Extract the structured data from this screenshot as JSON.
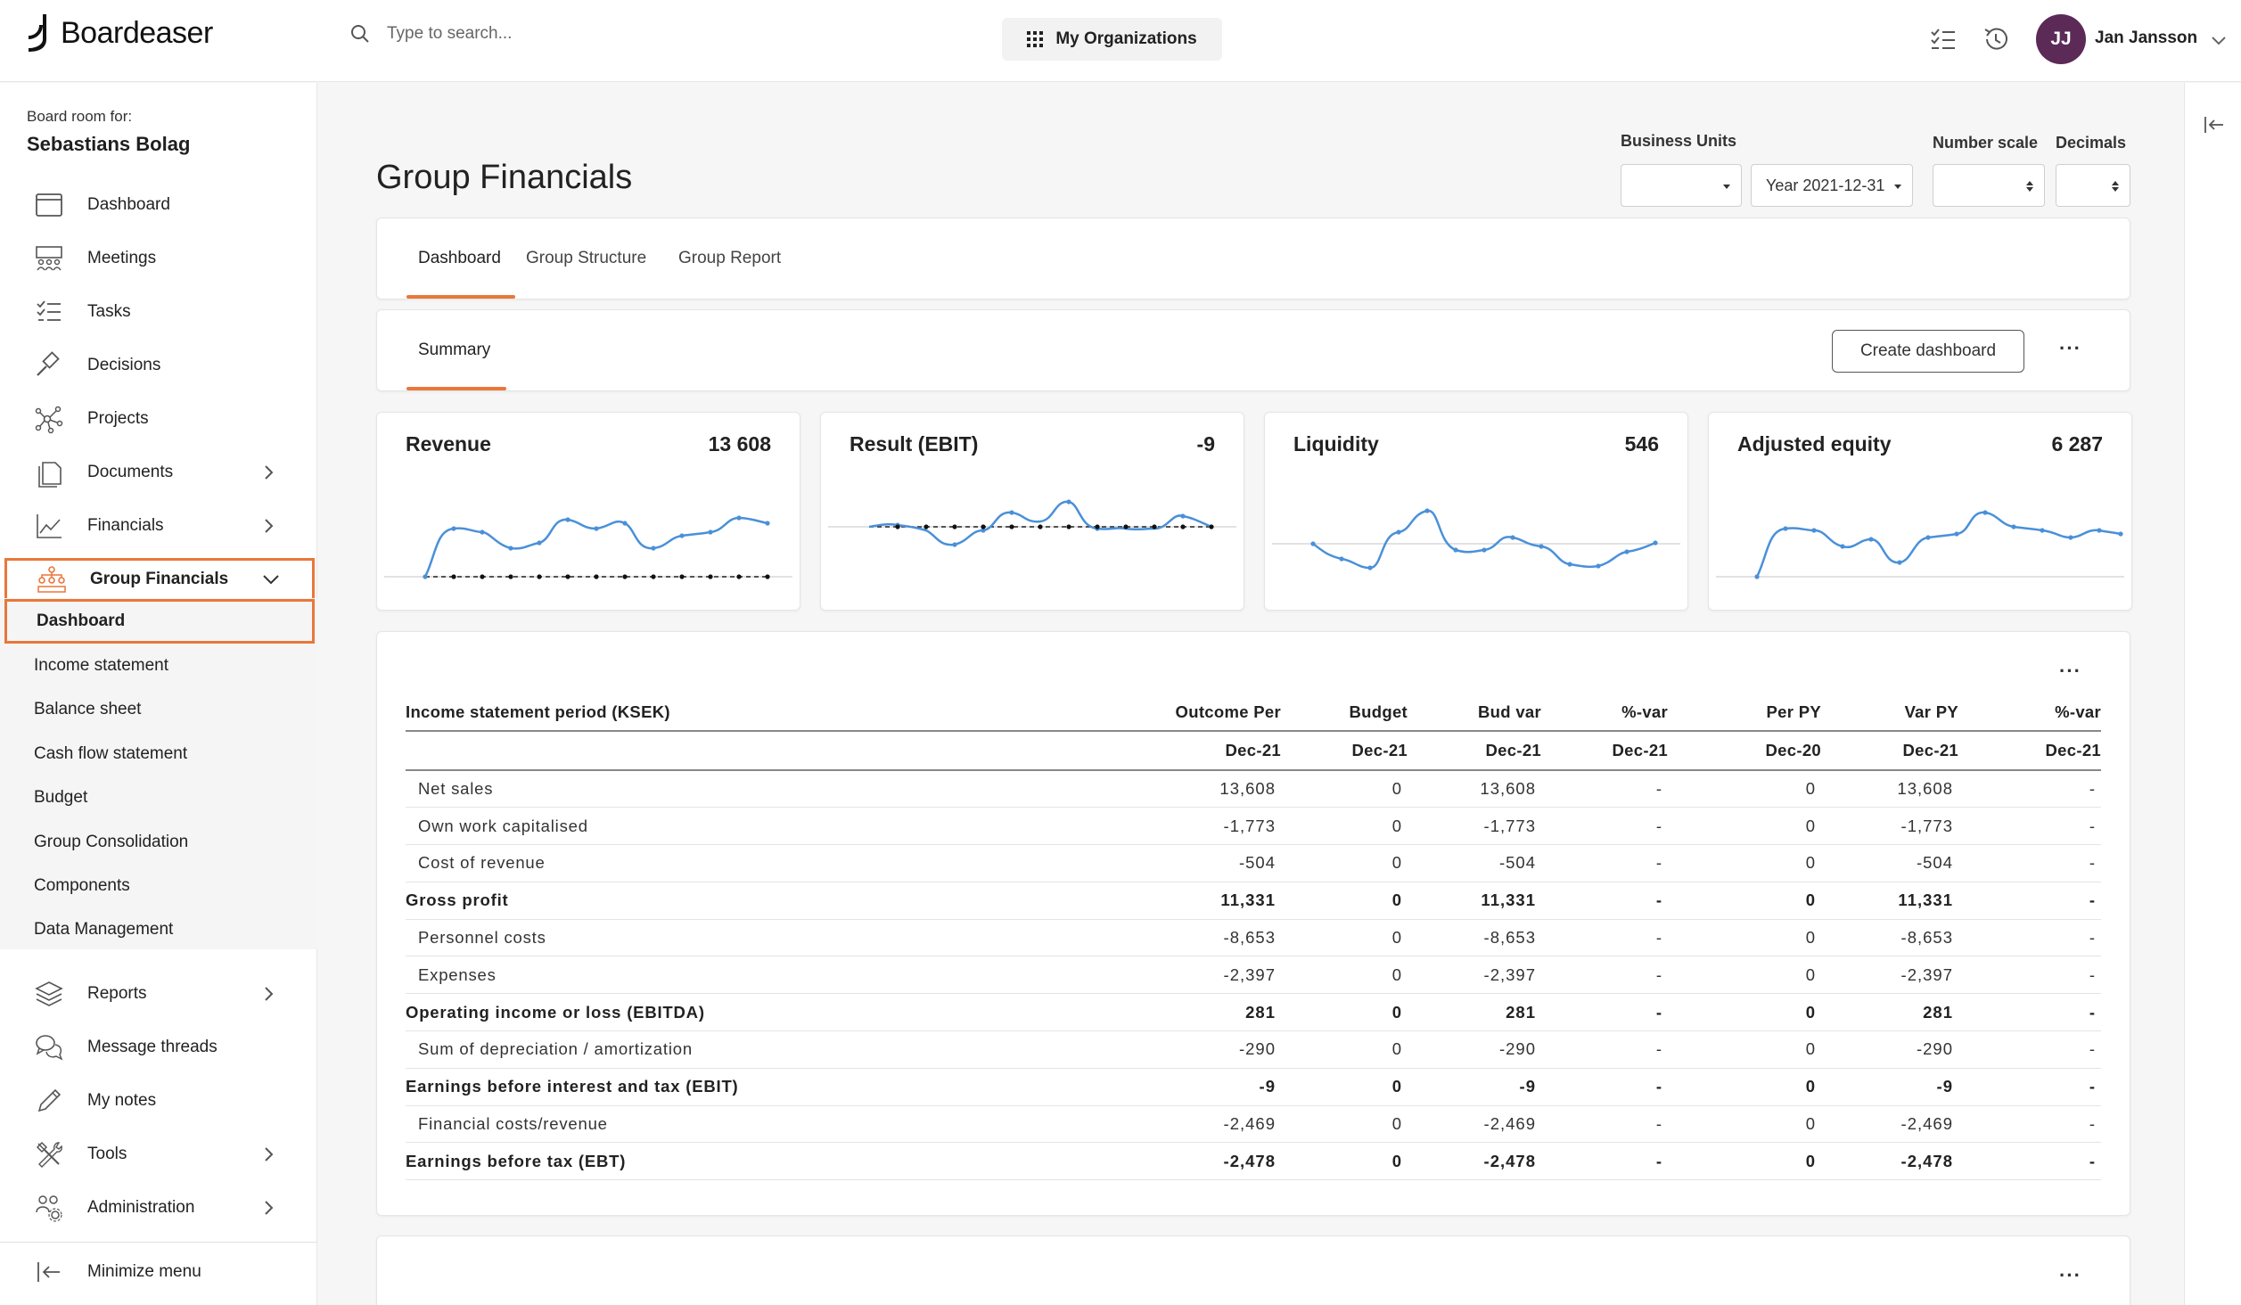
{
  "app": {
    "brand": "Boardeaser",
    "search_placeholder": "Type to search...",
    "orgs_button": "My Organizations",
    "user": {
      "initials": "JJ",
      "name": "Jan Jansson",
      "avatar_color": "#5c2a57"
    }
  },
  "colors": {
    "accent": "#e9773a",
    "chart_line": "#4a90d9"
  },
  "sidebar": {
    "board_for_label": "Board room for:",
    "board_name": "Sebastians Bolag",
    "items": [
      {
        "label": "Dashboard",
        "icon": "calendar-window-icon",
        "chevron": false
      },
      {
        "label": "Meetings",
        "icon": "meeting-people-icon",
        "chevron": false
      },
      {
        "label": "Tasks",
        "icon": "checklist-icon",
        "chevron": false
      },
      {
        "label": "Decisions",
        "icon": "gavel-icon",
        "chevron": false
      },
      {
        "label": "Projects",
        "icon": "network-nodes-icon",
        "chevron": false
      },
      {
        "label": "Documents",
        "icon": "documents-icon",
        "chevron": true
      },
      {
        "label": "Financials",
        "icon": "line-chart-icon",
        "chevron": true
      },
      {
        "label": "Group Financials",
        "icon": "org-hierarchy-icon",
        "chevron": true,
        "expanded": true
      }
    ],
    "group_financials_sub": [
      "Dashboard",
      "Income statement",
      "Balance sheet",
      "Cash flow statement",
      "Budget",
      "Group Consolidation",
      "Components",
      "Data Management"
    ],
    "items_after": [
      {
        "label": "Reports",
        "icon": "layers-icon",
        "chevron": true
      },
      {
        "label": "Message threads",
        "icon": "chat-bubbles-icon",
        "chevron": false
      },
      {
        "label": "My notes",
        "icon": "pencil-icon",
        "chevron": false
      },
      {
        "label": "Tools",
        "icon": "tools-icon",
        "chevron": true
      },
      {
        "label": "Administration",
        "icon": "users-gear-icon",
        "chevron": true
      }
    ],
    "minimize": "Minimize menu"
  },
  "page": {
    "title": "Group Financials",
    "filters": {
      "business_units_label": "Business Units",
      "business_units_value": "",
      "period_value": "Year 2021-12-31",
      "number_scale_label": "Number scale",
      "number_scale_value": "",
      "decimals_label": "Decimals",
      "decimals_value": ""
    },
    "tabs": [
      "Dashboard",
      "Group Structure",
      "Group Report"
    ],
    "subtabs": [
      "Summary"
    ],
    "create_dashboard": "Create dashboard"
  },
  "kpis": [
    {
      "name": "Revenue",
      "value": "13 608"
    },
    {
      "name": "Result (EBIT)",
      "value": "-9"
    },
    {
      "name": "Liquidity",
      "value": "546"
    },
    {
      "name": "Adjusted equity",
      "value": "6 287"
    }
  ],
  "table": {
    "title": "Income statement period (KSEK)",
    "columns": [
      "Outcome Per",
      "Budget",
      "Bud var",
      "%-var",
      "Per PY",
      "Var PY",
      "%-var"
    ],
    "periods": [
      "Dec-21",
      "Dec-21",
      "Dec-21",
      "Dec-21",
      "Dec-20",
      "Dec-21",
      "Dec-21"
    ],
    "rows": [
      {
        "label": "Net sales",
        "bold": false,
        "values": [
          "13,608",
          "0",
          "13,608",
          "-",
          "0",
          "13,608",
          "-"
        ]
      },
      {
        "label": "Own work capitalised",
        "bold": false,
        "values": [
          "-1,773",
          "0",
          "-1,773",
          "-",
          "0",
          "-1,773",
          "-"
        ]
      },
      {
        "label": "Cost of revenue",
        "bold": false,
        "values": [
          "-504",
          "0",
          "-504",
          "-",
          "0",
          "-504",
          "-"
        ]
      },
      {
        "label": "Gross profit",
        "bold": true,
        "values": [
          "11,331",
          "0",
          "11,331",
          "-",
          "0",
          "11,331",
          "-"
        ]
      },
      {
        "label": "Personnel costs",
        "bold": false,
        "values": [
          "-8,653",
          "0",
          "-8,653",
          "-",
          "0",
          "-8,653",
          "-"
        ]
      },
      {
        "label": "Expenses",
        "bold": false,
        "values": [
          "-2,397",
          "0",
          "-2,397",
          "-",
          "0",
          "-2,397",
          "-"
        ]
      },
      {
        "label": "Operating income or loss (EBITDA)",
        "bold": true,
        "values": [
          "281",
          "0",
          "281",
          "-",
          "0",
          "281",
          "-"
        ]
      },
      {
        "label": "Sum of depreciation / amortization",
        "bold": false,
        "values": [
          "-290",
          "0",
          "-290",
          "-",
          "0",
          "-290",
          "-"
        ]
      },
      {
        "label": "Earnings before interest and tax (EBIT)",
        "bold": true,
        "values": [
          "-9",
          "0",
          "-9",
          "-",
          "0",
          "-9",
          "-"
        ]
      },
      {
        "label": "Financial costs/revenue",
        "bold": false,
        "values": [
          "-2,469",
          "0",
          "-2,469",
          "-",
          "0",
          "-2,469",
          "-"
        ]
      },
      {
        "label": "Earnings before tax (EBT)",
        "bold": true,
        "values": [
          "-2,478",
          "0",
          "-2,478",
          "-",
          "0",
          "-2,478",
          "-"
        ]
      }
    ]
  }
}
